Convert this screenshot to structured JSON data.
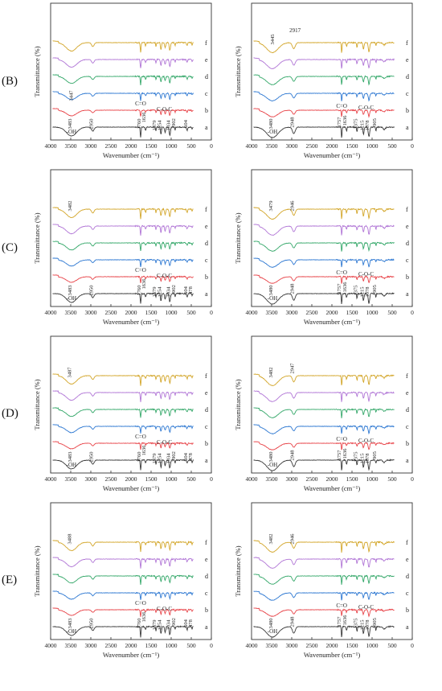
{
  "colors": {
    "a": "#3a3a3a",
    "b": "#e8454a",
    "c": "#2f79d2",
    "d": "#35a86a",
    "e": "#b176d6",
    "f": "#d3a62a"
  },
  "row_labels": [
    "(B)",
    "(C)",
    "(D)",
    "(E)"
  ],
  "chart_data": [
    {
      "type": "line",
      "row": "(B)",
      "col": "left",
      "xlabel": "Wavenumber (cm⁻¹)",
      "ylabel": "Transmittance (%)",
      "xlim": [
        4000,
        0
      ],
      "xticks": [
        4000,
        3500,
        3000,
        2500,
        2000,
        1500,
        1000,
        500,
        0
      ],
      "series_names": [
        "a",
        "b",
        "c",
        "d",
        "e",
        "f"
      ],
      "annotations": [
        "3483",
        "-OH",
        "3447",
        "2950",
        "C=O",
        "1760",
        "1636",
        "1379",
        "1254",
        "C-O-C",
        "1034",
        "902",
        "604"
      ]
    },
    {
      "type": "line",
      "row": "(B)",
      "col": "right",
      "xlabel": "Wavenumber (cm⁻¹)",
      "ylabel": "Transmittance (%)",
      "xlim": [
        4000,
        0
      ],
      "xticks": [
        4000,
        3500,
        3000,
        2500,
        2000,
        1500,
        1000,
        500,
        0
      ],
      "series_names": [
        "a",
        "b",
        "c",
        "d",
        "e",
        "f"
      ],
      "annotations": [
        "3445",
        "2917",
        "3480",
        "-OH",
        "2948",
        "C=O",
        "1757",
        "1636",
        "1375",
        "1215",
        "C-O-C",
        "1078",
        "905"
      ]
    },
    {
      "type": "line",
      "row": "(C)",
      "col": "left",
      "xlabel": "Wavenumber (cm⁻¹)",
      "ylabel": "Transmittance (%)",
      "xlim": [
        4000,
        0
      ],
      "xticks": [
        4000,
        3500,
        3000,
        2500,
        2000,
        1500,
        1000,
        500,
        0
      ],
      "series_names": [
        "a",
        "b",
        "c",
        "d",
        "e",
        "f"
      ],
      "annotations": [
        "3482",
        "3483",
        "-OH",
        "2950",
        "C=O",
        "1760",
        "1636",
        "1379",
        "1254",
        "C-O-C",
        "1034",
        "902",
        "604",
        "478"
      ]
    },
    {
      "type": "line",
      "row": "(C)",
      "col": "right",
      "xlabel": "Wavenumber (cm⁻¹)",
      "ylabel": "Transmittance (%)",
      "xlim": [
        4000,
        0
      ],
      "xticks": [
        4000,
        3500,
        3000,
        2500,
        2000,
        1500,
        1000,
        500,
        0
      ],
      "series_names": [
        "a",
        "b",
        "c",
        "d",
        "e",
        "f"
      ],
      "annotations": [
        "3479",
        "2946",
        "3480",
        "-OH",
        "2948",
        "C=O",
        "1757",
        "1636",
        "1375",
        "1215",
        "C-O-C",
        "1078",
        "905"
      ]
    },
    {
      "type": "line",
      "row": "(D)",
      "col": "left",
      "xlabel": "Wavenumber (cm⁻¹)",
      "ylabel": "Transmittance (%)",
      "xlim": [
        4000,
        0
      ],
      "xticks": [
        4000,
        3500,
        3000,
        2500,
        2000,
        1500,
        1000,
        500,
        0
      ],
      "series_names": [
        "a",
        "b",
        "c",
        "d",
        "e",
        "f"
      ],
      "annotations": [
        "3487",
        "3483",
        "-OH",
        "2950",
        "C=O",
        "1760",
        "1636",
        "1379",
        "1254",
        "C-O-C",
        "1034",
        "902",
        "604",
        "478"
      ]
    },
    {
      "type": "line",
      "row": "(D)",
      "col": "right",
      "xlabel": "Wavenumber (cm⁻¹)",
      "ylabel": "Transmittance (%)",
      "xlim": [
        4000,
        0
      ],
      "xticks": [
        4000,
        3500,
        3000,
        2500,
        2000,
        1500,
        1000,
        500,
        0
      ],
      "series_names": [
        "a",
        "b",
        "c",
        "d",
        "e",
        "f"
      ],
      "annotations": [
        "3482",
        "2947",
        "3480",
        "-OH",
        "2948",
        "C=O",
        "1757",
        "1636",
        "1375",
        "1215",
        "C-O-C",
        "1078",
        "905"
      ]
    },
    {
      "type": "line",
      "row": "(E)",
      "col": "left",
      "xlabel": "Wavenumber (cm⁻¹)",
      "ylabel": "Transmittance (%)",
      "xlim": [
        4000,
        0
      ],
      "xticks": [
        4000,
        3500,
        3000,
        2500,
        2000,
        1500,
        1000,
        500,
        0
      ],
      "series_names": [
        "a",
        "b",
        "c",
        "d",
        "e",
        "f"
      ],
      "annotations": [
        "3488",
        "3483",
        "-OH",
        "2950",
        "C=O",
        "1760",
        "1636",
        "1379",
        "1254",
        "C-O-C",
        "1034",
        "902",
        "604",
        "478"
      ]
    },
    {
      "type": "line",
      "row": "(E)",
      "col": "right",
      "xlabel": "Wavenumber (cm⁻¹)",
      "ylabel": "Transmittance (%)",
      "xlim": [
        4000,
        0
      ],
      "xticks": [
        4000,
        3500,
        3000,
        2500,
        2000,
        1500,
        1000,
        500,
        0
      ],
      "series_names": [
        "a",
        "b",
        "c",
        "d",
        "e",
        "f"
      ],
      "annotations": [
        "3482",
        "2946",
        "3480",
        "-OH",
        "2948",
        "C=O",
        "1757",
        "1636",
        "1375",
        "1215",
        "C-O-C",
        "1078",
        "905"
      ]
    }
  ]
}
